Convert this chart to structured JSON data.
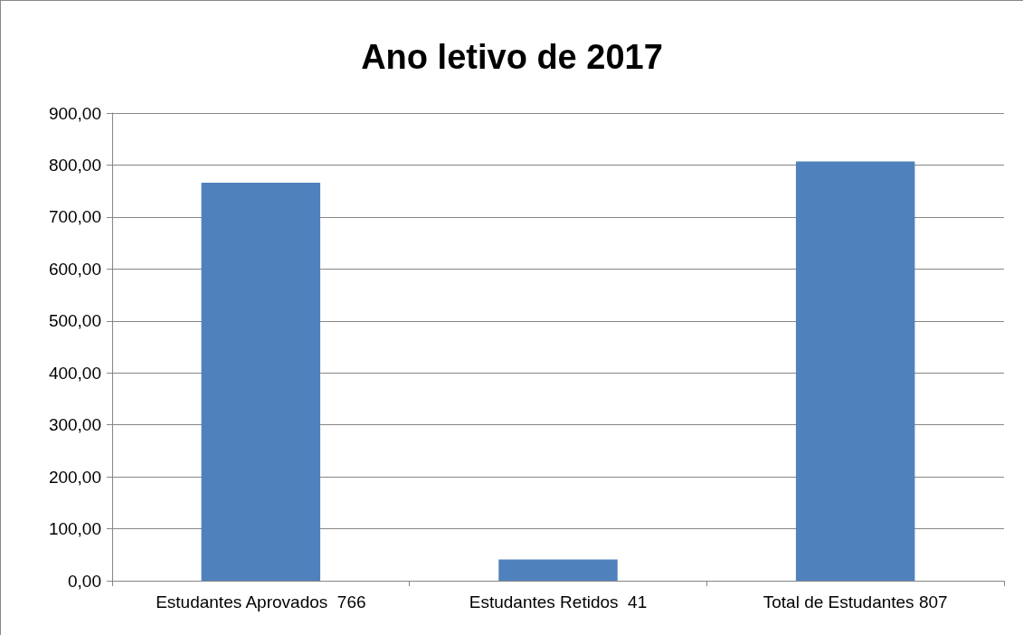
{
  "chart_data": {
    "type": "bar",
    "title": "Ano letivo de 2017",
    "categories": [
      "Estudantes Aprovados  766",
      "Estudantes Retidos  41",
      "Total de Estudantes 807"
    ],
    "values": [
      766,
      41,
      807
    ],
    "color": "#4f81bd",
    "ylim": [
      0,
      900
    ],
    "yticks": [
      {
        "value": 0,
        "label": "0,00"
      },
      {
        "value": 100,
        "label": "100,00"
      },
      {
        "value": 200,
        "label": "200,00"
      },
      {
        "value": 300,
        "label": "300,00"
      },
      {
        "value": 400,
        "label": "400,00"
      },
      {
        "value": 500,
        "label": "500,00"
      },
      {
        "value": 600,
        "label": "600,00"
      },
      {
        "value": 700,
        "label": "700,00"
      },
      {
        "value": 800,
        "label": "800,00"
      },
      {
        "value": 900,
        "label": "900,00"
      }
    ],
    "grid": true
  }
}
